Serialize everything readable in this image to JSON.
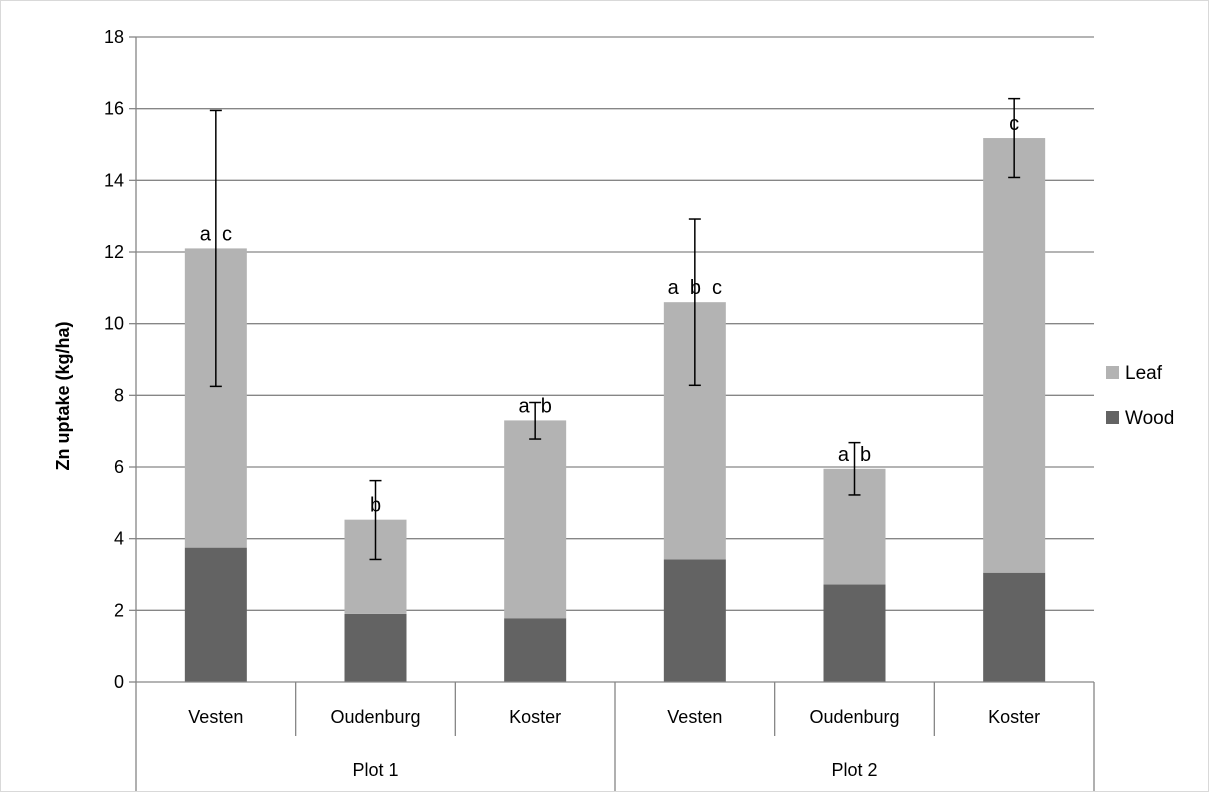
{
  "chart_data": {
    "type": "bar",
    "stacked": true,
    "ylabel": "Zn uptake (kg/ha)",
    "ylim": [
      0,
      18
    ],
    "ytick_step": 2,
    "grid": true,
    "legend_position": "right",
    "groups": [
      {
        "label": "Plot 1",
        "categories": [
          "Vesten",
          "Oudenburg",
          "Koster"
        ]
      },
      {
        "label": "Plot 2",
        "categories": [
          "Vesten",
          "Oudenburg",
          "Koster"
        ]
      }
    ],
    "categories": [
      "Vesten",
      "Oudenburg",
      "Koster",
      "Vesten",
      "Oudenburg",
      "Koster"
    ],
    "series": [
      {
        "name": "Wood",
        "color": "#636363",
        "values": [
          3.75,
          1.9,
          1.78,
          3.42,
          2.72,
          3.05
        ]
      },
      {
        "name": "Leaf",
        "color": "#b3b3b3",
        "values": [
          8.35,
          2.63,
          5.52,
          7.18,
          3.23,
          12.13
        ]
      }
    ],
    "totals": [
      12.1,
      4.53,
      7.3,
      10.6,
      5.95,
      15.18
    ],
    "error_bars": [
      {
        "low": 8.25,
        "high": 15.95
      },
      {
        "low": 3.42,
        "high": 5.62
      },
      {
        "low": 6.78,
        "high": 7.8
      },
      {
        "low": 8.28,
        "high": 12.92
      },
      {
        "low": 5.22,
        "high": 6.68
      },
      {
        "low": 14.08,
        "high": 16.28
      }
    ],
    "significance_labels": [
      "a  c",
      "b",
      "a  b",
      "a  b  c",
      "a  b",
      "c"
    ]
  }
}
